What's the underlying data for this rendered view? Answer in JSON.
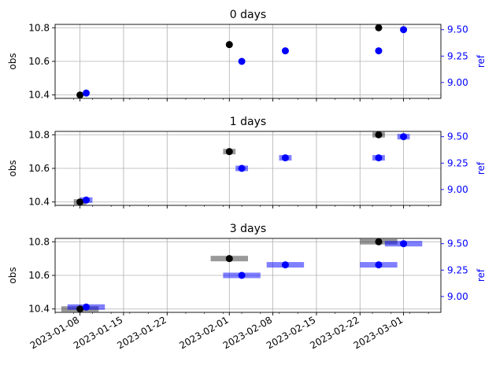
{
  "chart_data": [
    {
      "type": "scatter",
      "title": "0 days",
      "ylabel_left": "obs",
      "ylabel_right": "ref",
      "right_axis_color": "#0000ff",
      "grid": true,
      "ylim_left": [
        10.38,
        10.82
      ],
      "ylim_right": [
        8.85,
        9.55
      ],
      "yticks_left": [
        "10.4",
        "10.6",
        "10.8"
      ],
      "yticks_right": [
        "9.00",
        "9.25",
        "9.50"
      ],
      "obs_points": [
        {
          "x": "2023-01-08",
          "y": 10.4
        },
        {
          "x": "2023-02-01",
          "y": 10.7
        },
        {
          "x": "2023-02-25",
          "y": 10.8
        }
      ],
      "ref_points": [
        {
          "x": "2023-01-09",
          "y": 8.9
        },
        {
          "x": "2023-02-03",
          "y": 9.2
        },
        {
          "x": "2023-02-10",
          "y": 9.3
        },
        {
          "x": "2023-02-25",
          "y": 9.3
        },
        {
          "x": "2023-03-01",
          "y": 9.5
        }
      ],
      "obs_color": "#000000",
      "ref_color": "#0000ff",
      "window_days": 0
    },
    {
      "type": "scatter",
      "title": "1 days",
      "ylabel_left": "obs",
      "ylabel_right": "ref",
      "right_axis_color": "#0000ff",
      "grid": true,
      "ylim_left": [
        10.38,
        10.82
      ],
      "ylim_right": [
        8.85,
        9.55
      ],
      "yticks_left": [
        "10.4",
        "10.6",
        "10.8"
      ],
      "yticks_right": [
        "9.00",
        "9.25",
        "9.50"
      ],
      "obs_points": [
        {
          "x": "2023-01-08",
          "y": 10.4
        },
        {
          "x": "2023-02-01",
          "y": 10.7
        },
        {
          "x": "2023-02-25",
          "y": 10.8
        }
      ],
      "ref_points": [
        {
          "x": "2023-01-09",
          "y": 8.9
        },
        {
          "x": "2023-02-03",
          "y": 9.2
        },
        {
          "x": "2023-02-10",
          "y": 9.3
        },
        {
          "x": "2023-02-25",
          "y": 9.3
        },
        {
          "x": "2023-03-01",
          "y": 9.5
        }
      ],
      "obs_color": "#000000",
      "ref_color": "#0000ff",
      "window_days": 1
    },
    {
      "type": "scatter",
      "title": "3 days",
      "ylabel_left": "obs",
      "ylabel_right": "ref",
      "right_axis_color": "#0000ff",
      "grid": true,
      "ylim_left": [
        10.38,
        10.82
      ],
      "ylim_right": [
        8.85,
        9.55
      ],
      "yticks_left": [
        "10.4",
        "10.6",
        "10.8"
      ],
      "yticks_right": [
        "9.00",
        "9.25",
        "9.50"
      ],
      "obs_points": [
        {
          "x": "2023-01-08",
          "y": 10.4
        },
        {
          "x": "2023-02-01",
          "y": 10.7
        },
        {
          "x": "2023-02-25",
          "y": 10.8
        }
      ],
      "ref_points": [
        {
          "x": "2023-01-09",
          "y": 8.9
        },
        {
          "x": "2023-02-03",
          "y": 9.2
        },
        {
          "x": "2023-02-10",
          "y": 9.3
        },
        {
          "x": "2023-02-25",
          "y": 9.3
        },
        {
          "x": "2023-03-01",
          "y": 9.5
        }
      ],
      "obs_color": "#000000",
      "ref_color": "#0000ff",
      "window_days": 3
    }
  ],
  "x_axis": {
    "xlim": [
      "2023-01-04",
      "2023-03-07"
    ],
    "ticks": [
      "2023-01-08",
      "2023-01-15",
      "2023-01-22",
      "2023-02-01",
      "2023-02-08",
      "2023-02-15",
      "2023-02-22",
      "2023-03-01"
    ],
    "tick_labels": [
      "2023-01-08",
      "2023-01-15",
      "2023-01-22",
      "2023-02-01",
      "2023-02-08",
      "2023-02-15",
      "2023-02-22",
      "2023-03-01"
    ]
  }
}
